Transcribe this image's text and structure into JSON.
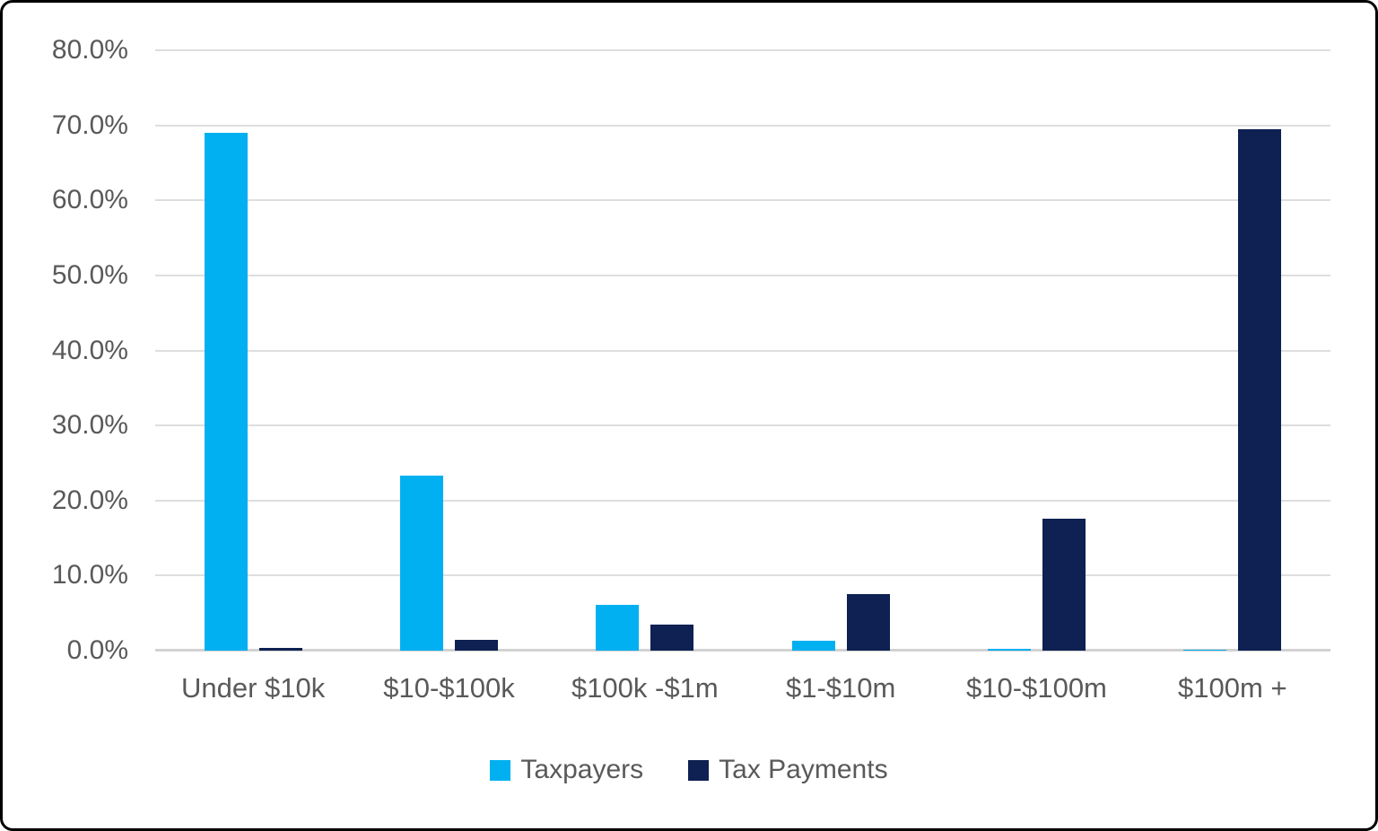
{
  "chart_data": {
    "type": "bar",
    "title": "",
    "xlabel": "",
    "ylabel": "",
    "categories": [
      "Under $10k",
      "$10-$100k",
      "$100k -$1m",
      "$1-$10m",
      "$10-$100m",
      "$100m +"
    ],
    "series": [
      {
        "name": "Taxpayers",
        "color": "#00b0f0",
        "values": [
          69.0,
          23.3,
          6.1,
          1.3,
          0.2,
          0.1
        ]
      },
      {
        "name": "Tax Payments",
        "color": "#0e2152",
        "values": [
          0.4,
          1.4,
          3.5,
          7.5,
          17.6,
          69.5
        ]
      }
    ],
    "y_ticks": [
      {
        "value": 0,
        "label": "0.0%"
      },
      {
        "value": 10,
        "label": "10.0%"
      },
      {
        "value": 20,
        "label": "20.0%"
      },
      {
        "value": 30,
        "label": "30.0%"
      },
      {
        "value": 40,
        "label": "40.0%"
      },
      {
        "value": 50,
        "label": "50.0%"
      },
      {
        "value": 60,
        "label": "60.0%"
      },
      {
        "value": 70,
        "label": "70.0%"
      },
      {
        "value": 80,
        "label": "80.0%"
      }
    ],
    "ylim": [
      0,
      80
    ],
    "grid": true,
    "legend_position": "bottom"
  },
  "colors": {
    "axis_text": "#595959",
    "gridline": "#dedede",
    "baseline": "#d2d2d2",
    "background": "#ffffff",
    "frame_border": "#000000"
  }
}
